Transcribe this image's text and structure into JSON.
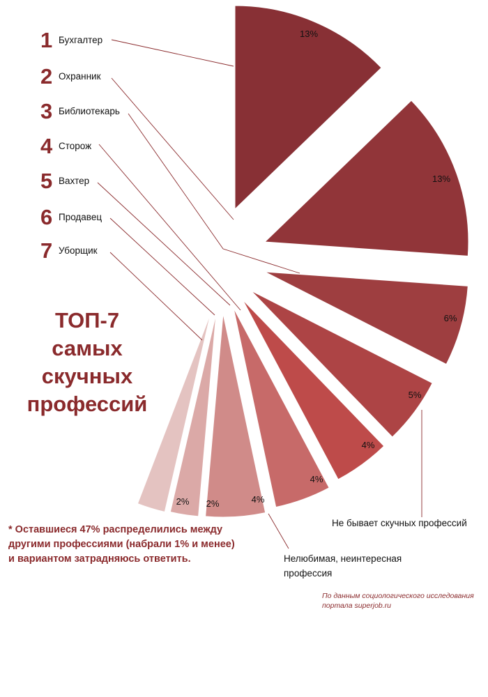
{
  "chart_data": {
    "type": "pie",
    "title": "ТОП-7 самых скучных профессий",
    "slices": [
      {
        "name": "Бухгалтер",
        "value": 13,
        "label": "13%",
        "rank": "1",
        "color": "#883035"
      },
      {
        "name": "Охранник",
        "value": 13,
        "label": "13%",
        "rank": "2",
        "color": "#913539"
      },
      {
        "name": "Библиотекарь",
        "value": 6,
        "label": "6%",
        "rank": "3",
        "color": "#9e3e40"
      },
      {
        "name": "Сторож",
        "value": 5,
        "label": "5%",
        "rank": "4",
        "color": "#ad4445"
      },
      {
        "name": "Вахтер",
        "value": 4,
        "label": "4%",
        "rank": "5",
        "color": "#be4b4a"
      },
      {
        "name": "Продавец",
        "value": 4,
        "label": "4%",
        "rank": "6",
        "color": "#c76a69"
      },
      {
        "name": "Уборщик",
        "value": 4,
        "label": "4%",
        "rank": "7",
        "color": "#d08b89"
      },
      {
        "name": "Нелюбимая, неинтересная профессия",
        "value": 2,
        "label": "2%",
        "color": "#dba9a7"
      },
      {
        "name": "Не бывает скучных профессий",
        "value": 2,
        "label": "2%",
        "color": "#e4c3c1"
      }
    ],
    "callouts": {
      "nelyubimaya_line1": "Нелюбимая, неинтересная",
      "nelyubimaya_line2": "профессия",
      "ne_byvaet": "Не бывает скучных профессий"
    }
  },
  "title_lines": [
    "ТОП-7",
    "самых",
    "скучных",
    "профессий"
  ],
  "footnote": "* Оставшиеся 47% распределились между другими профессиями (набрали 1% и менее) и вариантом затрадняюсь ответить.",
  "source_lines": [
    "По данным социологического исследования",
    "портала superjob.ru"
  ]
}
